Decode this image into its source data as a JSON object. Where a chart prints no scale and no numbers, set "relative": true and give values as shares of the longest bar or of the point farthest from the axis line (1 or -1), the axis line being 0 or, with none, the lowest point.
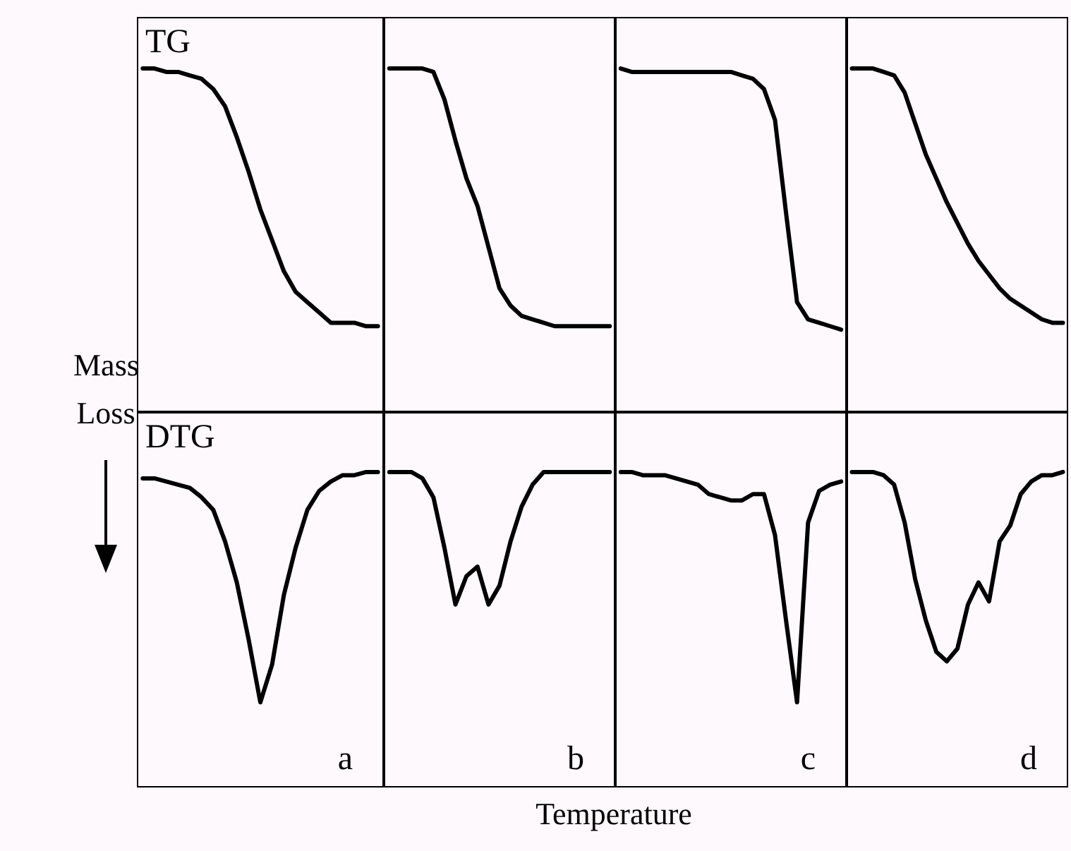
{
  "chart_data": [
    {
      "type": "line",
      "relative": true,
      "title": "TG",
      "color": "#000000",
      "categories": [
        null,
        null,
        null,
        null,
        null,
        null,
        null,
        null,
        null,
        null,
        null,
        null,
        null,
        null,
        null,
        null,
        null,
        null,
        null,
        null,
        null
      ],
      "values": [
        1,
        1,
        0.99,
        0.99,
        0.98,
        0.97,
        0.94,
        0.89,
        0.8,
        0.7,
        0.59,
        0.5,
        0.41,
        0.35,
        0.32,
        0.29,
        0.26,
        0.26,
        0.26,
        0.25,
        0.25
      ]
    },
    {
      "type": "line",
      "relative": true,
      "color": "#000000",
      "categories": [
        null,
        null,
        null,
        null,
        null,
        null,
        null,
        null,
        null,
        null,
        null,
        null,
        null,
        null,
        null,
        null,
        null,
        null,
        null,
        null,
        null
      ],
      "values": [
        1,
        1,
        1,
        1,
        0.99,
        0.91,
        0.79,
        0.68,
        0.6,
        0.48,
        0.36,
        0.31,
        0.28,
        0.27,
        0.26,
        0.25,
        0.25,
        0.25,
        0.25,
        0.25,
        0.25
      ]
    },
    {
      "type": "line",
      "relative": true,
      "color": "#000000",
      "categories": [
        null,
        null,
        null,
        null,
        null,
        null,
        null,
        null,
        null,
        null,
        null,
        null,
        null,
        null,
        null,
        null,
        null,
        null,
        null,
        null,
        null
      ],
      "values": [
        1,
        0.99,
        0.99,
        0.99,
        0.99,
        0.99,
        0.99,
        0.99,
        0.99,
        0.99,
        0.99,
        0.98,
        0.97,
        0.94,
        0.85,
        0.58,
        0.32,
        0.27,
        0.26,
        0.25,
        0.24
      ]
    },
    {
      "type": "line",
      "relative": true,
      "color": "#000000",
      "categories": [
        null,
        null,
        null,
        null,
        null,
        null,
        null,
        null,
        null,
        null,
        null,
        null,
        null,
        null,
        null,
        null,
        null,
        null,
        null,
        null,
        null
      ],
      "values": [
        1,
        1,
        1,
        0.99,
        0.98,
        0.93,
        0.84,
        0.75,
        0.68,
        0.61,
        0.55,
        0.49,
        0.44,
        0.4,
        0.36,
        0.33,
        0.31,
        0.29,
        0.27,
        0.26,
        0.26
      ]
    },
    {
      "type": "line",
      "relative": true,
      "title": "DTG",
      "ylabel": "Mass Loss",
      "annotations": [
        "a"
      ],
      "color": "#000000",
      "categories": [
        null,
        null,
        null,
        null,
        null,
        null,
        null,
        null,
        null,
        null,
        null,
        null,
        null,
        null,
        null,
        null,
        null,
        null,
        null,
        null,
        null
      ],
      "values": [
        0.98,
        0.98,
        0.97,
        0.96,
        0.95,
        0.92,
        0.88,
        0.78,
        0.65,
        0.47,
        0.27,
        0.39,
        0.61,
        0.76,
        0.88,
        0.94,
        0.97,
        0.99,
        0.99,
        1,
        1
      ]
    },
    {
      "type": "line",
      "relative": true,
      "xlabel": "Temperature",
      "annotations": [
        "b"
      ],
      "color": "#000000",
      "categories": [
        null,
        null,
        null,
        null,
        null,
        null,
        null,
        null,
        null,
        null,
        null,
        null,
        null,
        null,
        null,
        null,
        null,
        null,
        null,
        null,
        null
      ],
      "values": [
        1,
        1,
        1,
        0.98,
        0.92,
        0.76,
        0.58,
        0.67,
        0.7,
        0.58,
        0.64,
        0.78,
        0.89,
        0.96,
        1,
        1,
        1,
        1,
        1,
        1,
        1
      ]
    },
    {
      "type": "line",
      "relative": true,
      "annotations": [
        "c"
      ],
      "color": "#000000",
      "categories": [
        null,
        null,
        null,
        null,
        null,
        null,
        null,
        null,
        null,
        null,
        null,
        null,
        null,
        null,
        null,
        null,
        null,
        null,
        null,
        null,
        null
      ],
      "values": [
        1,
        1,
        0.99,
        0.99,
        0.99,
        0.98,
        0.97,
        0.96,
        0.93,
        0.92,
        0.91,
        0.91,
        0.93,
        0.93,
        0.8,
        0.53,
        0.27,
        0.84,
        0.94,
        0.96,
        0.97
      ]
    },
    {
      "type": "line",
      "relative": true,
      "annotations": [
        "d"
      ],
      "color": "#000000",
      "categories": [
        null,
        null,
        null,
        null,
        null,
        null,
        null,
        null,
        null,
        null,
        null,
        null,
        null,
        null,
        null,
        null,
        null,
        null,
        null,
        null,
        null
      ],
      "values": [
        1,
        1,
        1,
        0.99,
        0.96,
        0.84,
        0.66,
        0.53,
        0.43,
        0.4,
        0.44,
        0.58,
        0.65,
        0.59,
        0.78,
        0.83,
        0.93,
        0.97,
        0.99,
        0.99,
        1
      ]
    }
  ]
}
